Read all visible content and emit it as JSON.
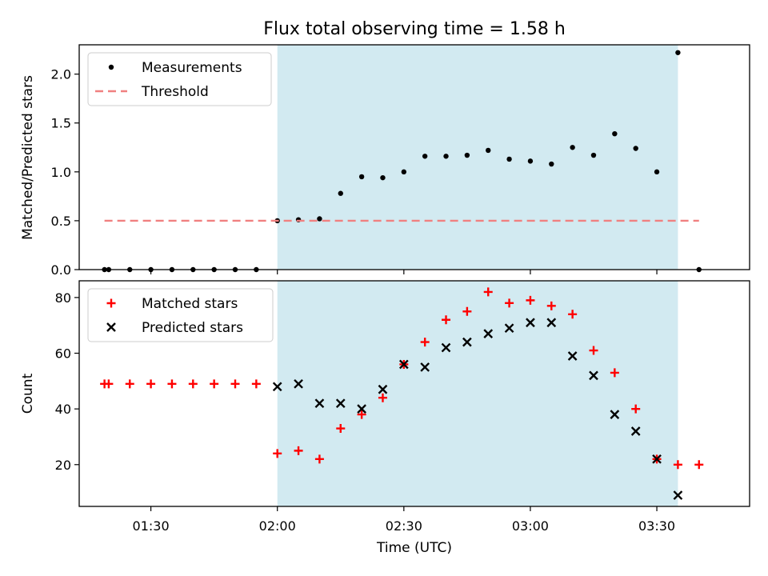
{
  "title": "Flux total observing time = 1.58 h",
  "colors": {
    "shade": "#add8e6",
    "measurements": "#000000",
    "threshold": "#f08080",
    "matched": "#ff0000",
    "predicted": "#000000"
  },
  "chart_data": [
    {
      "type": "scatter",
      "ylabel": "Matched/Predicted stars",
      "xlabel": "",
      "ylim": [
        0,
        2.3
      ],
      "yticks": [
        "0.0",
        "0.5",
        "1.0",
        "1.5",
        "2.0"
      ],
      "legend_position": "top-left",
      "shaded_span": [
        "02:00",
        "03:35"
      ],
      "series": [
        {
          "name": "Measurements",
          "marker": "dot",
          "points": [
            [
              "01:19",
              0
            ],
            [
              "01:20",
              0
            ],
            [
              "01:25",
              0
            ],
            [
              "01:30",
              0
            ],
            [
              "01:35",
              0
            ],
            [
              "01:40",
              0
            ],
            [
              "01:45",
              0
            ],
            [
              "01:50",
              0
            ],
            [
              "01:55",
              0
            ],
            [
              "02:00",
              0.5
            ],
            [
              "02:05",
              0.51
            ],
            [
              "02:10",
              0.52
            ],
            [
              "02:15",
              0.78
            ],
            [
              "02:20",
              0.95
            ],
            [
              "02:25",
              0.94
            ],
            [
              "02:30",
              1.0
            ],
            [
              "02:35",
              1.16
            ],
            [
              "02:40",
              1.16
            ],
            [
              "02:45",
              1.17
            ],
            [
              "02:50",
              1.22
            ],
            [
              "02:55",
              1.13
            ],
            [
              "03:00",
              1.11
            ],
            [
              "03:05",
              1.08
            ],
            [
              "03:10",
              1.25
            ],
            [
              "03:15",
              1.17
            ],
            [
              "03:20",
              1.39
            ],
            [
              "03:25",
              1.24
            ],
            [
              "03:30",
              1.0
            ],
            [
              "03:35",
              2.22
            ],
            [
              "03:40",
              0
            ]
          ]
        },
        {
          "name": "Threshold",
          "marker": "dashed-line",
          "points": [
            [
              "01:19",
              0.5
            ],
            [
              "03:40",
              0.5
            ]
          ]
        }
      ]
    },
    {
      "type": "scatter",
      "ylabel": "Count",
      "xlabel": "Time (UTC)",
      "ylim": [
        5,
        86
      ],
      "yticks": [
        "20",
        "40",
        "60",
        "80"
      ],
      "xlim": [
        "01:13",
        "03:52"
      ],
      "xticks": [
        "01:30",
        "02:00",
        "02:30",
        "03:00",
        "03:30"
      ],
      "legend_position": "top-left",
      "shaded_span": [
        "02:00",
        "03:35"
      ],
      "series": [
        {
          "name": "Matched stars",
          "marker": "plus",
          "points": [
            [
              "01:19",
              49
            ],
            [
              "01:20",
              49
            ],
            [
              "01:25",
              49
            ],
            [
              "01:30",
              49
            ],
            [
              "01:35",
              49
            ],
            [
              "01:40",
              49
            ],
            [
              "01:45",
              49
            ],
            [
              "01:50",
              49
            ],
            [
              "01:55",
              49
            ],
            [
              "02:00",
              24
            ],
            [
              "02:05",
              25
            ],
            [
              "02:10",
              22
            ],
            [
              "02:15",
              33
            ],
            [
              "02:20",
              38
            ],
            [
              "02:25",
              44
            ],
            [
              "02:30",
              56
            ],
            [
              "02:35",
              64
            ],
            [
              "02:40",
              72
            ],
            [
              "02:45",
              75
            ],
            [
              "02:50",
              82
            ],
            [
              "02:55",
              78
            ],
            [
              "03:00",
              79
            ],
            [
              "03:05",
              77
            ],
            [
              "03:10",
              74
            ],
            [
              "03:15",
              61
            ],
            [
              "03:20",
              53
            ],
            [
              "03:25",
              40
            ],
            [
              "03:30",
              22
            ],
            [
              "03:35",
              20
            ],
            [
              "03:40",
              20
            ]
          ]
        },
        {
          "name": "Predicted stars",
          "marker": "x",
          "points": [
            [
              "02:00",
              48
            ],
            [
              "02:05",
              49
            ],
            [
              "02:10",
              42
            ],
            [
              "02:15",
              42
            ],
            [
              "02:20",
              40
            ],
            [
              "02:25",
              47
            ],
            [
              "02:30",
              56
            ],
            [
              "02:35",
              55
            ],
            [
              "02:40",
              62
            ],
            [
              "02:45",
              64
            ],
            [
              "02:50",
              67
            ],
            [
              "02:55",
              69
            ],
            [
              "03:00",
              71
            ],
            [
              "03:05",
              71
            ],
            [
              "03:10",
              59
            ],
            [
              "03:15",
              52
            ],
            [
              "03:20",
              38
            ],
            [
              "03:25",
              32
            ],
            [
              "03:30",
              22
            ],
            [
              "03:35",
              9
            ]
          ]
        }
      ]
    }
  ]
}
